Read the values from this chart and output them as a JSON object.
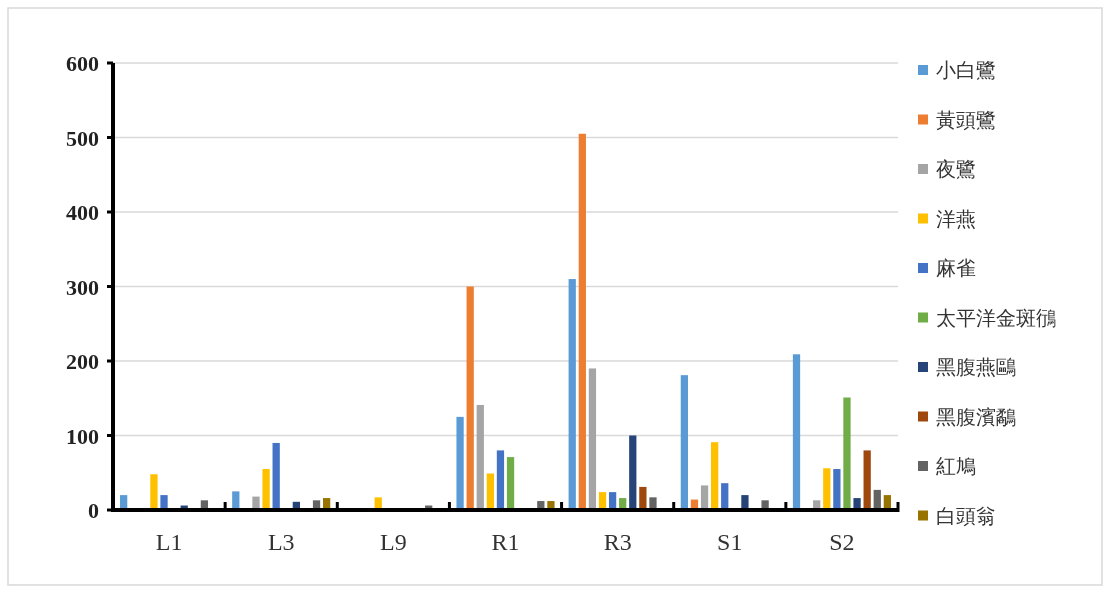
{
  "chart_data": {
    "type": "bar",
    "categories": [
      "L1",
      "L3",
      "L9",
      "R1",
      "R3",
      "S1",
      "S2"
    ],
    "series": [
      {
        "name": "小白鷺",
        "color": "#5b9bd5",
        "values": [
          20,
          25,
          0,
          125,
          310,
          181,
          209
        ]
      },
      {
        "name": "黃頭鷺",
        "color": "#ed7d31",
        "values": [
          0,
          0,
          0,
          300,
          505,
          14,
          0
        ]
      },
      {
        "name": "夜鷺",
        "color": "#a5a5a5",
        "values": [
          0,
          18,
          0,
          141,
          190,
          33,
          13
        ]
      },
      {
        "name": "洋燕",
        "color": "#ffc000",
        "values": [
          48,
          55,
          17,
          49,
          24,
          91,
          56
        ]
      },
      {
        "name": "麻雀",
        "color": "#4472c4",
        "values": [
          20,
          90,
          0,
          80,
          24,
          36,
          55
        ]
      },
      {
        "name": "太平洋金斑鴴",
        "color": "#70ad47",
        "values": [
          0,
          0,
          0,
          71,
          16,
          0,
          151
        ]
      },
      {
        "name": "黑腹燕鷗",
        "color": "#264478",
        "values": [
          6,
          11,
          0,
          0,
          100,
          20,
          16
        ]
      },
      {
        "name": "黑腹濱鷸",
        "color": "#9e480e",
        "values": [
          0,
          0,
          0,
          0,
          31,
          0,
          80
        ]
      },
      {
        "name": "紅鳩",
        "color": "#636363",
        "values": [
          13,
          13,
          6,
          12,
          17,
          13,
          27
        ]
      },
      {
        "name": "白頭翁",
        "color": "#997300",
        "values": [
          0,
          16,
          0,
          12,
          0,
          0,
          20
        ]
      }
    ],
    "ylim": [
      0,
      600
    ],
    "yticks": [
      0,
      100,
      200,
      300,
      400,
      500,
      600
    ],
    "grid": "y",
    "legend": "right"
  }
}
